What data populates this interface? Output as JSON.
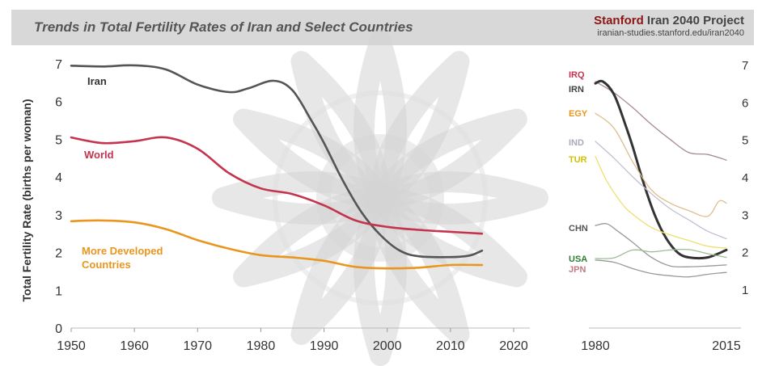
{
  "header": {
    "title": "Trends in Total Fertility Rates of Iran and Select Countries",
    "brand_accent": "Stanford",
    "brand_rest": " Iran 2040 Project",
    "url": "iranian-studies.stanford.edu/iran2040"
  },
  "chart_data": [
    {
      "type": "line",
      "title": "",
      "xlabel": "",
      "ylabel": "Total Fertility Rate (births per woman)",
      "xlim": [
        1950,
        2020
      ],
      "ylim": [
        0,
        7
      ],
      "xticks": [
        1950,
        1960,
        1970,
        1980,
        1990,
        2000,
        2010,
        2020
      ],
      "yticks": [
        0,
        1,
        2,
        3,
        4,
        5,
        6,
        7
      ],
      "grid": false,
      "series": [
        {
          "name": "Iran",
          "color": "#555555",
          "points": [
            [
              1950,
              6.95
            ],
            [
              1955,
              6.93
            ],
            [
              1960,
              6.96
            ],
            [
              1965,
              6.85
            ],
            [
              1970,
              6.45
            ],
            [
              1975,
              6.25
            ],
            [
              1978,
              6.35
            ],
            [
              1982,
              6.55
            ],
            [
              1985,
              6.3
            ],
            [
              1988,
              5.5
            ],
            [
              1990,
              4.9
            ],
            [
              1993,
              3.9
            ],
            [
              1996,
              3.05
            ],
            [
              1999,
              2.45
            ],
            [
              2002,
              2.05
            ],
            [
              2005,
              1.9
            ],
            [
              2010,
              1.88
            ],
            [
              2013,
              1.92
            ],
            [
              2015,
              2.05
            ]
          ]
        },
        {
          "name": "World",
          "color": "#c4344e",
          "points": [
            [
              1950,
              5.05
            ],
            [
              1955,
              4.9
            ],
            [
              1960,
              4.95
            ],
            [
              1965,
              5.05
            ],
            [
              1970,
              4.75
            ],
            [
              1975,
              4.1
            ],
            [
              1980,
              3.7
            ],
            [
              1985,
              3.55
            ],
            [
              1990,
              3.25
            ],
            [
              1995,
              2.85
            ],
            [
              2000,
              2.68
            ],
            [
              2005,
              2.6
            ],
            [
              2010,
              2.55
            ],
            [
              2015,
              2.5
            ]
          ]
        },
        {
          "name": "More Developed Countries",
          "color": "#e8961e",
          "points": [
            [
              1950,
              2.83
            ],
            [
              1955,
              2.85
            ],
            [
              1960,
              2.8
            ],
            [
              1965,
              2.62
            ],
            [
              1970,
              2.33
            ],
            [
              1975,
              2.1
            ],
            [
              1980,
              1.93
            ],
            [
              1985,
              1.87
            ],
            [
              1990,
              1.78
            ],
            [
              1995,
              1.62
            ],
            [
              2000,
              1.58
            ],
            [
              2005,
              1.6
            ],
            [
              2010,
              1.67
            ],
            [
              2015,
              1.67
            ]
          ]
        }
      ]
    },
    {
      "type": "line",
      "title": "",
      "xlabel": "",
      "ylabel": "",
      "xlim": [
        1980,
        2015
      ],
      "ylim": [
        0.5,
        7
      ],
      "xticks": [
        1980,
        2015
      ],
      "yticks": [
        1,
        2,
        3,
        4,
        5,
        6,
        7
      ],
      "grid": false,
      "series": [
        {
          "name": "IRQ",
          "color": "#a78a98",
          "points": [
            [
              1980,
              6.55
            ],
            [
              1985,
              6.25
            ],
            [
              1990,
              5.85
            ],
            [
              1995,
              5.4
            ],
            [
              2000,
              5.0
            ],
            [
              2005,
              4.65
            ],
            [
              2010,
              4.6
            ],
            [
              2015,
              4.45
            ]
          ]
        },
        {
          "name": "IRN",
          "color": "#333333",
          "points": [
            [
              1980,
              6.5
            ],
            [
              1982,
              6.55
            ],
            [
              1985,
              6.2
            ],
            [
              1988,
              5.4
            ],
            [
              1990,
              4.8
            ],
            [
              1993,
              3.8
            ],
            [
              1996,
              2.95
            ],
            [
              1999,
              2.35
            ],
            [
              2002,
              1.98
            ],
            [
              2005,
              1.85
            ],
            [
              2010,
              1.85
            ],
            [
              2015,
              2.05
            ]
          ]
        },
        {
          "name": "EGY",
          "color": "#dfbd8f",
          "points": [
            [
              1980,
              5.7
            ],
            [
              1985,
              5.3
            ],
            [
              1990,
              4.4
            ],
            [
              1995,
              3.65
            ],
            [
              2000,
              3.3
            ],
            [
              2005,
              3.1
            ],
            [
              2010,
              2.95
            ],
            [
              2013,
              3.35
            ],
            [
              2015,
              3.3
            ]
          ]
        },
        {
          "name": "IND",
          "color": "#c0c0d4",
          "points": [
            [
              1980,
              4.95
            ],
            [
              1985,
              4.5
            ],
            [
              1990,
              4.0
            ],
            [
              1995,
              3.55
            ],
            [
              2000,
              3.15
            ],
            [
              2005,
              2.85
            ],
            [
              2010,
              2.55
            ],
            [
              2015,
              2.35
            ]
          ]
        },
        {
          "name": "TUR",
          "color": "#ece070",
          "points": [
            [
              1980,
              4.55
            ],
            [
              1983,
              3.9
            ],
            [
              1987,
              3.3
            ],
            [
              1990,
              3.0
            ],
            [
              1995,
              2.65
            ],
            [
              2000,
              2.45
            ],
            [
              2005,
              2.3
            ],
            [
              2010,
              2.15
            ],
            [
              2015,
              2.1
            ]
          ]
        },
        {
          "name": "CHN",
          "color": "#999999",
          "points": [
            [
              1980,
              2.7
            ],
            [
              1983,
              2.75
            ],
            [
              1986,
              2.55
            ],
            [
              1990,
              2.25
            ],
            [
              1995,
              1.85
            ],
            [
              2000,
              1.62
            ],
            [
              2005,
              1.6
            ],
            [
              2010,
              1.62
            ],
            [
              2015,
              1.65
            ]
          ]
        },
        {
          "name": "USA",
          "color": "#9dbc96",
          "points": [
            [
              1980,
              1.82
            ],
            [
              1985,
              1.84
            ],
            [
              1990,
              2.05
            ],
            [
              1995,
              2.0
            ],
            [
              2000,
              2.05
            ],
            [
              2005,
              2.06
            ],
            [
              2010,
              1.95
            ],
            [
              2015,
              1.85
            ]
          ]
        },
        {
          "name": "JPN",
          "color": "#999999",
          "points": [
            [
              1980,
              1.78
            ],
            [
              1985,
              1.72
            ],
            [
              1990,
              1.55
            ],
            [
              1995,
              1.42
            ],
            [
              2000,
              1.36
            ],
            [
              2005,
              1.33
            ],
            [
              2010,
              1.4
            ],
            [
              2015,
              1.45
            ]
          ]
        }
      ]
    }
  ]
}
